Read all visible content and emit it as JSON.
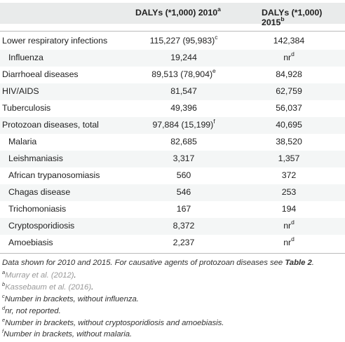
{
  "header": {
    "col1": "DALYs (*1,000) 2010",
    "col1_sup": "a",
    "col2": "DALYs (*1,000) 2015",
    "col2_sup": "b"
  },
  "rows": [
    {
      "name": "Lower respiratory infections",
      "v1": "115,227 (95,983)",
      "v1_sup": "c",
      "v2": "142,384",
      "v2_sup": ""
    },
    {
      "name": "Influenza",
      "v1": "19,244",
      "v1_sup": "",
      "v2": "nr",
      "v2_sup": "d"
    },
    {
      "name": "Diarrhoeal diseases",
      "v1": "89,513 (78,904)",
      "v1_sup": "e",
      "v2": "84,928",
      "v2_sup": ""
    },
    {
      "name": "HIV/AIDS",
      "v1": "81,547",
      "v1_sup": "",
      "v2": "62,759",
      "v2_sup": ""
    },
    {
      "name": "Tuberculosis",
      "v1": "49,396",
      "v1_sup": "",
      "v2": "56,037",
      "v2_sup": ""
    },
    {
      "name": "Protozoan diseases, total",
      "v1": "97,884 (15,199)",
      "v1_sup": "f",
      "v2": "40,695",
      "v2_sup": ""
    },
    {
      "name": "Malaria",
      "v1": "82,685",
      "v1_sup": "",
      "v2": "38,520",
      "v2_sup": ""
    },
    {
      "name": "Leishmaniasis",
      "v1": "3,317",
      "v1_sup": "",
      "v2": "1,357",
      "v2_sup": ""
    },
    {
      "name": "African trypanosomiasis",
      "v1": "560",
      "v1_sup": "",
      "v2": "372",
      "v2_sup": ""
    },
    {
      "name": "Chagas disease",
      "v1": "546",
      "v1_sup": "",
      "v2": "253",
      "v2_sup": ""
    },
    {
      "name": "Trichomoniasis",
      "v1": "167",
      "v1_sup": "",
      "v2": "194",
      "v2_sup": ""
    },
    {
      "name": "Cryptosporidiosis",
      "v1": "8,372",
      "v1_sup": "",
      "v2": "nr",
      "v2_sup": "d"
    },
    {
      "name": "Amoebiasis",
      "v1": "2,237",
      "v1_sup": "",
      "v2": "nr",
      "v2_sup": "d"
    }
  ],
  "footnotes": {
    "note_main": "Data shown for 2010 and 2015. For causative agents of protozoan diseases see ",
    "note_table_ref": "Table 2",
    "note_end": ".",
    "a_mark": "a",
    "a_text": "Murray et al. (2012)",
    "a_end": ".",
    "b_mark": "b",
    "b_text": "Kassebaum et al. (2016)",
    "b_end": ".",
    "c_mark": "c",
    "c_text": "Number in brackets, without influenza.",
    "d_mark": "d",
    "d_text": "nr, not reported.",
    "e_mark": "e",
    "e_text": "Number in brackets, without cryptosporidiosis and amoebiasis.",
    "f_mark": "f",
    "f_text": "Number in brackets, without malaria."
  }
}
